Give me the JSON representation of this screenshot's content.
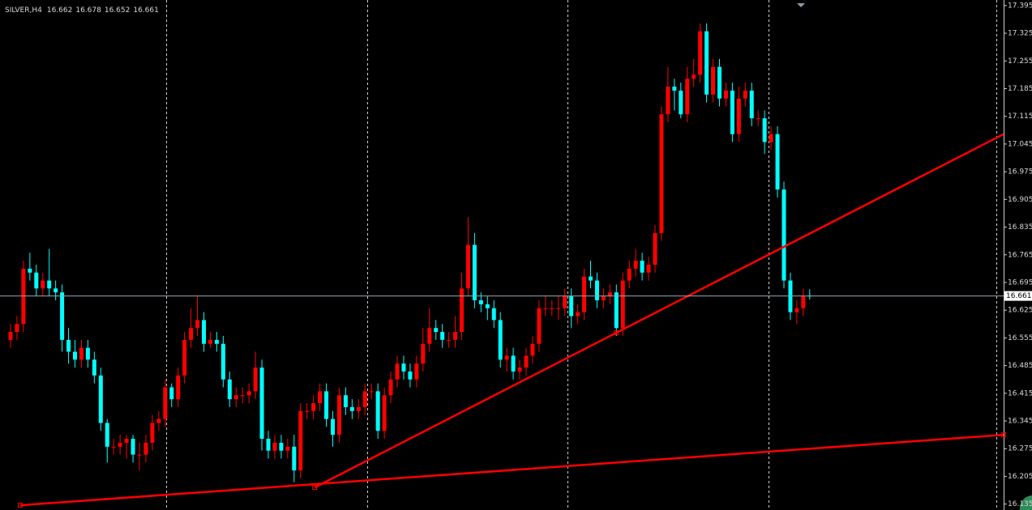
{
  "chart_data": {
    "type": "candlestick",
    "symbol": "SILVER,H4",
    "up_color": "#ff0000",
    "down_color": "#00ffff",
    "open": [
      16.55,
      16.57,
      16.59,
      16.73,
      16.72,
      16.68,
      16.7,
      16.68,
      16.67,
      16.55,
      16.52,
      16.5,
      16.53,
      16.5,
      16.46,
      16.34,
      16.28,
      16.28,
      16.29,
      16.3,
      16.26,
      16.26,
      16.29,
      16.34,
      16.35,
      16.43,
      16.4,
      16.46,
      16.55,
      16.58,
      16.6,
      16.54,
      16.55,
      16.54,
      16.45,
      16.4,
      16.41,
      16.41,
      16.42,
      16.48,
      16.3,
      16.27,
      16.29,
      16.27,
      16.28,
      16.22,
      16.37,
      16.37,
      16.39,
      16.42,
      16.35,
      16.31,
      16.41,
      16.38,
      16.37,
      16.38,
      16.42,
      16.42,
      16.32,
      16.41,
      16.45,
      16.49,
      16.47,
      16.45,
      16.49,
      16.54,
      16.58,
      16.57,
      16.55,
      16.55,
      16.57,
      16.68,
      16.79,
      16.65,
      16.64,
      16.63,
      16.6,
      16.5,
      16.51,
      16.47,
      16.48,
      16.51,
      16.54,
      16.63,
      16.63,
      16.63,
      16.63,
      16.66,
      16.61,
      16.62,
      16.71,
      16.7,
      16.65,
      16.66,
      16.67,
      16.58,
      16.7,
      16.73,
      16.75,
      16.72,
      16.74,
      16.82,
      17.12,
      17.19,
      17.18,
      17.12,
      17.21,
      17.22,
      17.33,
      17.17,
      17.24,
      17.16,
      17.18,
      17.07,
      17.16,
      17.18,
      17.11,
      17.11,
      17.05,
      17.07,
      16.93,
      16.7,
      16.62,
      16.63,
      16.662
    ],
    "high": [
      16.59,
      16.61,
      16.75,
      16.77,
      16.74,
      16.72,
      16.78,
      16.7,
      16.69,
      16.58,
      16.55,
      16.55,
      16.55,
      16.52,
      16.48,
      16.35,
      16.3,
      16.31,
      16.31,
      16.31,
      16.29,
      16.31,
      16.36,
      16.37,
      16.45,
      16.44,
      16.48,
      16.57,
      16.63,
      16.66,
      16.62,
      16.57,
      16.57,
      16.56,
      16.47,
      16.43,
      16.43,
      16.44,
      16.52,
      16.5,
      16.32,
      16.31,
      16.31,
      16.3,
      16.31,
      16.39,
      16.39,
      16.41,
      16.44,
      16.44,
      16.37,
      16.43,
      16.43,
      16.4,
      16.4,
      16.44,
      16.44,
      16.44,
      16.43,
      16.47,
      16.51,
      16.51,
      16.49,
      16.51,
      16.58,
      16.63,
      16.6,
      16.59,
      16.57,
      16.61,
      16.72,
      16.86,
      16.82,
      16.67,
      16.66,
      16.65,
      16.62,
      16.53,
      16.53,
      16.5,
      16.53,
      16.56,
      16.65,
      16.66,
      16.65,
      16.66,
      16.68,
      16.68,
      16.64,
      16.73,
      16.75,
      16.72,
      16.68,
      16.69,
      16.69,
      16.72,
      16.75,
      16.78,
      16.77,
      16.76,
      16.84,
      17.14,
      17.24,
      17.21,
      17.2,
      17.24,
      17.26,
      17.35,
      17.35,
      17.26,
      17.26,
      17.2,
      17.2,
      17.19,
      17.2,
      17.2,
      17.13,
      17.13,
      17.09,
      17.09,
      16.95,
      16.72,
      16.65,
      16.68,
      16.678
    ],
    "low": [
      16.53,
      16.55,
      16.57,
      16.7,
      16.66,
      16.66,
      16.66,
      16.65,
      16.52,
      16.49,
      16.48,
      16.48,
      16.48,
      16.44,
      16.32,
      16.24,
      16.26,
      16.26,
      16.25,
      16.24,
      16.22,
      16.24,
      16.27,
      16.32,
      16.33,
      16.38,
      16.38,
      16.44,
      16.53,
      16.56,
      16.52,
      16.53,
      16.52,
      16.43,
      16.38,
      16.38,
      16.39,
      16.39,
      16.4,
      16.27,
      16.25,
      16.25,
      16.25,
      16.25,
      16.19,
      16.2,
      16.35,
      16.35,
      16.37,
      16.33,
      16.28,
      16.29,
      16.36,
      16.35,
      16.35,
      16.36,
      16.4,
      16.3,
      16.3,
      16.39,
      16.43,
      16.45,
      16.43,
      16.43,
      16.47,
      16.52,
      16.55,
      16.53,
      16.53,
      16.53,
      16.55,
      16.66,
      16.63,
      16.62,
      16.6,
      16.58,
      16.48,
      16.47,
      16.45,
      16.45,
      16.46,
      16.49,
      16.52,
      16.61,
      16.61,
      16.6,
      16.61,
      16.58,
      16.59,
      16.6,
      16.68,
      16.63,
      16.63,
      16.64,
      16.56,
      16.56,
      16.68,
      16.71,
      16.7,
      16.7,
      16.72,
      16.8,
      17.1,
      17.13,
      17.11,
      17.1,
      17.19,
      17.2,
      17.15,
      17.15,
      17.14,
      17.14,
      17.05,
      17.05,
      17.14,
      17.09,
      17.09,
      17.02,
      17.03,
      16.91,
      16.68,
      16.6,
      16.59,
      16.61,
      16.652
    ],
    "close": [
      16.57,
      16.59,
      16.73,
      16.72,
      16.68,
      16.7,
      16.68,
      16.67,
      16.55,
      16.52,
      16.5,
      16.53,
      16.5,
      16.46,
      16.34,
      16.28,
      16.28,
      16.29,
      16.3,
      16.26,
      16.26,
      16.29,
      16.34,
      16.35,
      16.43,
      16.4,
      16.46,
      16.55,
      16.58,
      16.6,
      16.54,
      16.55,
      16.54,
      16.45,
      16.4,
      16.41,
      16.41,
      16.42,
      16.48,
      16.3,
      16.27,
      16.29,
      16.27,
      16.28,
      16.22,
      16.37,
      16.37,
      16.39,
      16.42,
      16.35,
      16.31,
      16.41,
      16.38,
      16.37,
      16.38,
      16.42,
      16.42,
      16.32,
      16.41,
      16.45,
      16.49,
      16.47,
      16.45,
      16.49,
      16.54,
      16.58,
      16.57,
      16.55,
      16.55,
      16.57,
      16.68,
      16.79,
      16.65,
      16.64,
      16.63,
      16.6,
      16.5,
      16.51,
      16.47,
      16.48,
      16.51,
      16.54,
      16.63,
      16.63,
      16.63,
      16.63,
      16.66,
      16.61,
      16.62,
      16.71,
      16.7,
      16.65,
      16.66,
      16.67,
      16.58,
      16.7,
      16.73,
      16.75,
      16.72,
      16.74,
      16.82,
      17.12,
      17.19,
      17.18,
      17.12,
      17.21,
      17.22,
      17.33,
      17.17,
      17.24,
      17.16,
      17.18,
      17.07,
      17.16,
      17.18,
      17.11,
      17.11,
      17.05,
      17.07,
      16.93,
      16.7,
      16.62,
      16.63,
      16.66,
      16.661
    ],
    "ylim": [
      16.12,
      17.409
    ],
    "yticks": [
      17.395,
      17.325,
      17.255,
      17.185,
      17.115,
      17.045,
      16.975,
      16.905,
      16.835,
      16.765,
      16.695,
      16.625,
      16.555,
      16.485,
      16.415,
      16.345,
      16.275,
      16.205,
      16.135
    ],
    "trendlines": [
      {
        "color": "#ff0000",
        "x": [
          47.2,
          94.0
        ],
        "y": [
          16.177,
          16.568
        ]
      },
      {
        "color": "#ff0000",
        "x": [
          1.5,
          154.1
        ],
        "y": [
          16.132,
          16.31
        ]
      }
    ]
  }
}
